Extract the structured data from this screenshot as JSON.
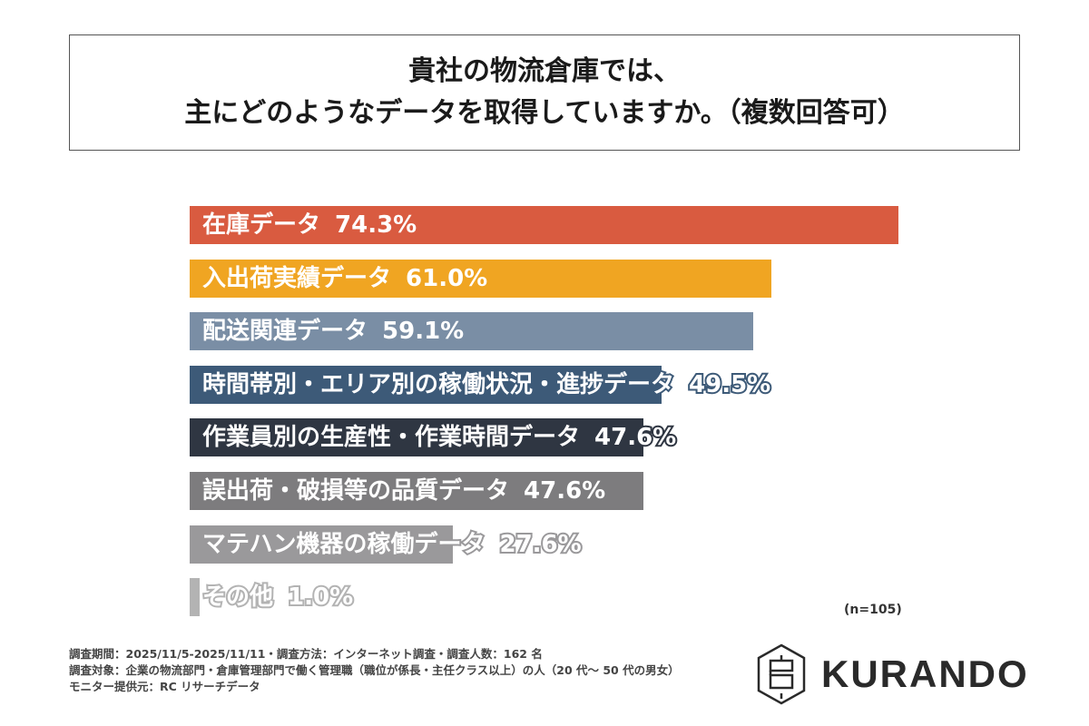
{
  "chart_data": {
    "type": "bar",
    "orientation": "horizontal",
    "title": [
      "貴社の物流倉庫では、",
      "主にどのようなデータを取得していますか。（複数回答可）"
    ],
    "categories": [
      "在庫データ",
      "入出荷実績データ",
      "配送関連データ",
      "時間帯別・エリア別の稼働状況・進捗データ",
      "作業員別の生産性・作業時間データ",
      "誤出荷・破損等の品質データ",
      "マテハン機器の稼働データ",
      "その他"
    ],
    "values": [
      74.3,
      61.0,
      59.1,
      49.5,
      47.6,
      47.6,
      27.6,
      1.0
    ],
    "value_labels": [
      "74.3%",
      "61.0%",
      "59.1%",
      "49.5%",
      "47.6%",
      "47.6%",
      "27.6%",
      "1.0%"
    ],
    "colors": [
      "#d95b40",
      "#f0a522",
      "#7a8ea5",
      "#3d5a78",
      "#2f3642",
      "#7d7c7e",
      "#9a999b",
      "#b3b3b3"
    ],
    "unit": "%",
    "grid": false,
    "note": "(n=105)"
  },
  "footer": {
    "lines": [
      "調査期間：2025/11/5-2025/11/11・調査方法：インターネット調査・調査人数：162 名",
      "調査対象：企業の物流部門・倉庫管理部門で働く管理職（職位が係長・主任クラス以上）の人（20 代～ 50 代の男女）",
      "モニター提供元：RC リサーチデータ"
    ]
  },
  "logo": {
    "text": "KURANDO"
  }
}
